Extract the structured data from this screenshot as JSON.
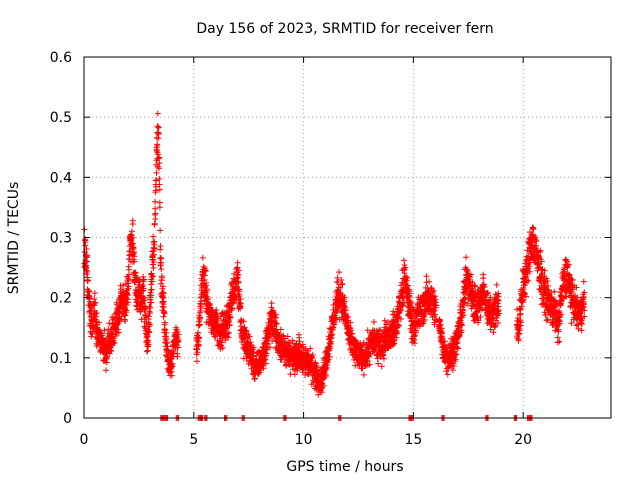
{
  "chart_data": {
    "type": "scatter",
    "title": "Day 156 of 2023, SRMTID for receiver fern",
    "xlabel": "GPS time / hours",
    "ylabel": "SRMTID / TECUs",
    "xlim": [
      0,
      24
    ],
    "ylim": [
      0,
      0.6
    ],
    "x_ticks": [
      0,
      5,
      10,
      15,
      20
    ],
    "x_tick_labels": [
      "0",
      "5",
      "10",
      "15",
      "20"
    ],
    "y_ticks": [
      0,
      0.1,
      0.2,
      0.3,
      0.4,
      0.5,
      0.6
    ],
    "y_tick_labels": [
      "0",
      "0.1",
      "0.2",
      "0.3",
      "0.4",
      "0.5",
      "0.6"
    ],
    "grid": true,
    "marker": "plus",
    "color": "#ff0000",
    "anchors": [
      [
        0.0,
        0.28
      ],
      [
        0.1,
        0.27
      ],
      [
        0.2,
        0.21
      ],
      [
        0.3,
        0.17
      ],
      [
        0.4,
        0.16
      ],
      [
        0.5,
        0.19
      ],
      [
        0.6,
        0.14
      ],
      [
        0.8,
        0.12
      ],
      [
        1.0,
        0.11
      ],
      [
        1.2,
        0.13
      ],
      [
        1.4,
        0.15
      ],
      [
        1.6,
        0.17
      ],
      [
        1.7,
        0.2
      ],
      [
        1.8,
        0.19
      ],
      [
        1.9,
        0.19
      ],
      [
        2.0,
        0.22
      ],
      [
        2.1,
        0.29
      ],
      [
        2.2,
        0.3
      ],
      [
        2.3,
        0.24
      ],
      [
        2.4,
        0.2
      ],
      [
        2.5,
        0.22
      ],
      [
        2.6,
        0.19
      ],
      [
        2.7,
        0.21
      ],
      [
        2.8,
        0.17
      ],
      [
        2.9,
        0.12
      ],
      [
        3.0,
        0.17
      ],
      [
        3.1,
        0.24
      ],
      [
        3.2,
        0.3
      ],
      [
        3.3,
        0.42
      ],
      [
        3.4,
        0.5
      ],
      [
        3.45,
        0.35
      ],
      [
        3.5,
        0.24
      ],
      [
        3.6,
        0.2
      ],
      [
        3.7,
        0.14
      ],
      [
        3.8,
        0.1
      ],
      [
        3.9,
        0.09
      ],
      [
        4.0,
        0.1
      ],
      [
        4.1,
        0.12
      ],
      [
        4.2,
        0.13
      ],
      [
        5.2,
        0.12
      ],
      [
        5.3,
        0.18
      ],
      [
        5.4,
        0.24
      ],
      [
        5.5,
        0.22
      ],
      [
        5.6,
        0.19
      ],
      [
        5.8,
        0.16
      ],
      [
        6.0,
        0.16
      ],
      [
        6.2,
        0.14
      ],
      [
        6.4,
        0.15
      ],
      [
        6.6,
        0.17
      ],
      [
        6.8,
        0.21
      ],
      [
        7.0,
        0.24
      ],
      [
        7.1,
        0.19
      ],
      [
        7.2,
        0.14
      ],
      [
        7.4,
        0.12
      ],
      [
        7.6,
        0.11
      ],
      [
        7.8,
        0.08
      ],
      [
        8.0,
        0.09
      ],
      [
        8.2,
        0.11
      ],
      [
        8.4,
        0.14
      ],
      [
        8.6,
        0.17
      ],
      [
        8.8,
        0.13
      ],
      [
        9.0,
        0.12
      ],
      [
        9.2,
        0.11
      ],
      [
        9.4,
        0.1
      ],
      [
        9.6,
        0.1
      ],
      [
        9.8,
        0.11
      ],
      [
        10.0,
        0.09
      ],
      [
        10.2,
        0.1
      ],
      [
        10.4,
        0.08
      ],
      [
        10.6,
        0.07
      ],
      [
        10.8,
        0.06
      ],
      [
        11.0,
        0.09
      ],
      [
        11.2,
        0.13
      ],
      [
        11.4,
        0.17
      ],
      [
        11.6,
        0.21
      ],
      [
        11.8,
        0.19
      ],
      [
        12.0,
        0.15
      ],
      [
        12.2,
        0.12
      ],
      [
        12.4,
        0.11
      ],
      [
        12.6,
        0.1
      ],
      [
        12.8,
        0.1
      ],
      [
        13.0,
        0.12
      ],
      [
        13.2,
        0.13
      ],
      [
        13.4,
        0.12
      ],
      [
        13.6,
        0.12
      ],
      [
        13.8,
        0.14
      ],
      [
        14.0,
        0.14
      ],
      [
        14.2,
        0.15
      ],
      [
        14.4,
        0.19
      ],
      [
        14.6,
        0.23
      ],
      [
        14.8,
        0.19
      ],
      [
        15.0,
        0.15
      ],
      [
        15.2,
        0.17
      ],
      [
        15.4,
        0.18
      ],
      [
        15.6,
        0.2
      ],
      [
        15.8,
        0.2
      ],
      [
        16.0,
        0.18
      ],
      [
        16.2,
        0.15
      ],
      [
        16.4,
        0.11
      ],
      [
        16.6,
        0.1
      ],
      [
        16.8,
        0.11
      ],
      [
        17.0,
        0.13
      ],
      [
        17.2,
        0.17
      ],
      [
        17.4,
        0.23
      ],
      [
        17.6,
        0.22
      ],
      [
        17.8,
        0.18
      ],
      [
        18.0,
        0.19
      ],
      [
        18.2,
        0.21
      ],
      [
        18.4,
        0.18
      ],
      [
        18.6,
        0.17
      ],
      [
        18.8,
        0.19
      ],
      [
        19.8,
        0.15
      ],
      [
        20.0,
        0.22
      ],
      [
        20.2,
        0.25
      ],
      [
        20.4,
        0.3
      ],
      [
        20.6,
        0.27
      ],
      [
        20.8,
        0.24
      ],
      [
        21.0,
        0.2
      ],
      [
        21.2,
        0.19
      ],
      [
        21.4,
        0.18
      ],
      [
        21.6,
        0.15
      ],
      [
        21.8,
        0.22
      ],
      [
        22.0,
        0.24
      ],
      [
        22.2,
        0.2
      ],
      [
        22.4,
        0.18
      ],
      [
        22.6,
        0.17
      ],
      [
        22.8,
        0.2
      ]
    ],
    "gaps": [
      [
        4.3,
        5.1
      ],
      [
        16.05,
        16.15
      ],
      [
        18.9,
        19.7
      ]
    ],
    "baseline_marks": [
      3.5,
      3.6,
      3.7,
      4.2,
      5.2,
      5.3,
      5.5,
      6.4,
      7.2,
      9.1,
      11.6,
      14.8,
      14.9,
      16.3,
      18.3,
      19.6,
      20.2,
      20.3
    ],
    "spread": 0.045,
    "points_per_hour": 60,
    "seed": 156
  }
}
